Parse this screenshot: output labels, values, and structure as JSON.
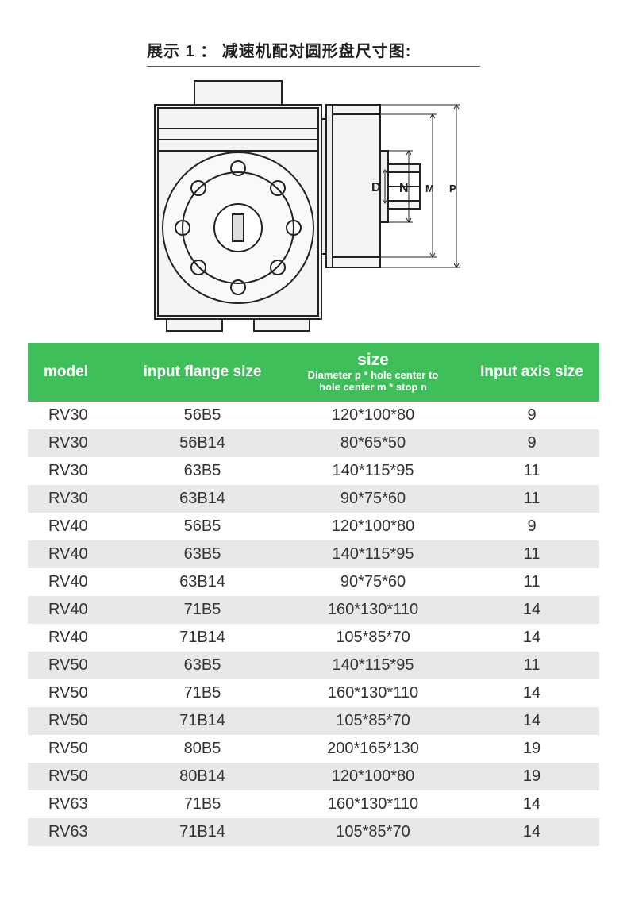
{
  "title": "展示 1 ： 减速机配对圆形盘尺寸图:",
  "diagram": {
    "labels": {
      "D": "D",
      "N": "N",
      "M": "M",
      "P": "P"
    },
    "stroke": "#222222",
    "body_fill": "#f2f2f2"
  },
  "table": {
    "header_bg": "#3fbf5a",
    "header_fg": "#ffffff",
    "row_alt_bg": "#e8e8e8",
    "columns": {
      "model": "model",
      "flange": "input flange size",
      "size_main": "size",
      "size_sub1": "Diameter p * hole center to",
      "size_sub2": "hole center m * stop n",
      "axis": "Input axis size"
    },
    "col_widths": [
      "120",
      "200",
      "230",
      "170"
    ],
    "rows": [
      {
        "model": "RV30",
        "flange": "56B5",
        "size": "120*100*80",
        "axis": "9"
      },
      {
        "model": "RV30",
        "flange": "56B14",
        "size": "80*65*50",
        "axis": "9"
      },
      {
        "model": "RV30",
        "flange": "63B5",
        "size": "140*115*95",
        "axis": "11"
      },
      {
        "model": "RV30",
        "flange": "63B14",
        "size": "90*75*60",
        "axis": "11"
      },
      {
        "model": "RV40",
        "flange": "56B5",
        "size": "120*100*80",
        "axis": "9"
      },
      {
        "model": "RV40",
        "flange": "63B5",
        "size": "140*115*95",
        "axis": "11"
      },
      {
        "model": "RV40",
        "flange": "63B14",
        "size": "90*75*60",
        "axis": "11"
      },
      {
        "model": "RV40",
        "flange": "71B5",
        "size": "160*130*110",
        "axis": "14"
      },
      {
        "model": "RV40",
        "flange": "71B14",
        "size": "105*85*70",
        "axis": "14"
      },
      {
        "model": "RV50",
        "flange": "63B5",
        "size": "140*115*95",
        "axis": "11"
      },
      {
        "model": "RV50",
        "flange": "71B5",
        "size": "160*130*110",
        "axis": "14"
      },
      {
        "model": "RV50",
        "flange": "71B14",
        "size": "105*85*70",
        "axis": "14"
      },
      {
        "model": "RV50",
        "flange": "80B5",
        "size": "200*165*130",
        "axis": "19"
      },
      {
        "model": "RV50",
        "flange": "80B14",
        "size": "120*100*80",
        "axis": "19"
      },
      {
        "model": "RV63",
        "flange": "71B5",
        "size": "160*130*110",
        "axis": "14"
      },
      {
        "model": "RV63",
        "flange": "71B14",
        "size": "105*85*70",
        "axis": "14"
      }
    ]
  }
}
